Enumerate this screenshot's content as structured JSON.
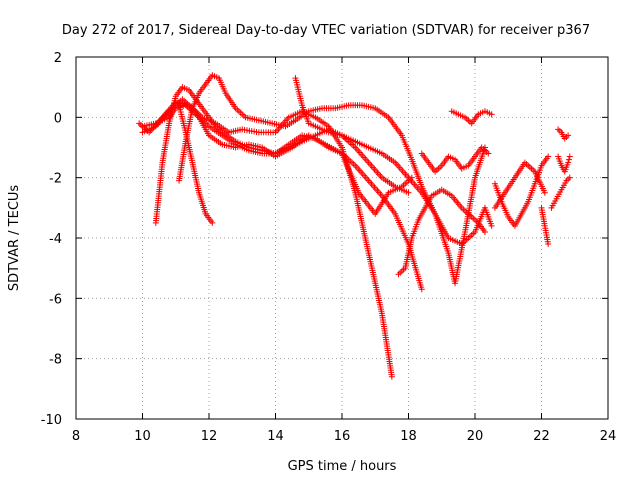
{
  "chart_data": {
    "type": "scatter",
    "title": "Day 272 of 2017, Sidereal Day-to-day VTEC variation (SDTVAR) for receiver p367",
    "xlabel": "GPS time / hours",
    "ylabel": "SDTVAR / TECUs",
    "xlim": [
      8,
      24
    ],
    "ylim": [
      -10,
      2
    ],
    "xticks": [
      "8",
      "10",
      "12",
      "14",
      "16",
      "18",
      "20",
      "22",
      "24"
    ],
    "yticks": [
      "2",
      "0",
      "-2",
      "-4",
      "-6",
      "-8",
      "-10"
    ],
    "grid": true,
    "marker": "+",
    "color": "#ff0000",
    "series": [
      {
        "name": "trace-a",
        "x": [
          9.9,
          10.2,
          10.6,
          11.0,
          11.4,
          11.8,
          12.2,
          12.6,
          13.0,
          13.5,
          14.0,
          14.4,
          14.8,
          15.2,
          15.6,
          16.0,
          16.4,
          16.8,
          17.2,
          17.5
        ],
        "y": [
          -0.2,
          -0.5,
          0.0,
          0.5,
          0.4,
          0.0,
          -0.2,
          -0.5,
          -0.4,
          -0.5,
          -0.5,
          0.0,
          0.2,
          0.0,
          -0.3,
          -1.0,
          -2.5,
          -4.5,
          -6.5,
          -8.6
        ]
      },
      {
        "name": "trace-b",
        "x": [
          10.0,
          10.4,
          10.8,
          11.2,
          11.6,
          12.0,
          12.4,
          12.8,
          13.2,
          13.6,
          14.0,
          14.5,
          15.0,
          15.5,
          16.0,
          16.5,
          17.0,
          17.4,
          17.8,
          18.1
        ],
        "y": [
          -0.5,
          -0.3,
          0.2,
          0.6,
          0.2,
          -0.6,
          -0.9,
          -1.0,
          -0.9,
          -1.0,
          -1.3,
          -1.0,
          -0.6,
          -0.9,
          -1.2,
          -2.5,
          -3.2,
          -2.5,
          -2.3,
          -2.0
        ]
      },
      {
        "name": "trace-c",
        "x": [
          10.0,
          10.4,
          10.8,
          11.0,
          11.3,
          11.6,
          12.0,
          12.4,
          12.8,
          13.2,
          13.6,
          14.0,
          14.4,
          14.8,
          15.2,
          15.6,
          16.0,
          16.4,
          16.8,
          17.2,
          17.6,
          18.0,
          18.4
        ],
        "y": [
          -0.3,
          -0.2,
          0.0,
          0.3,
          0.4,
          0.1,
          -0.3,
          -0.6,
          -0.9,
          -1.1,
          -1.2,
          -1.2,
          -0.9,
          -0.6,
          -0.7,
          -1.0,
          -1.2,
          -1.6,
          -2.1,
          -2.6,
          -3.2,
          -4.2,
          -5.7
        ]
      },
      {
        "name": "trace-d",
        "x": [
          10.4,
          10.6,
          10.8,
          11.0,
          11.2,
          11.4,
          11.6,
          11.8,
          12.0,
          12.2,
          12.4,
          12.8,
          13.2,
          13.6,
          14.0,
          14.4,
          14.8,
          15.2,
          15.6,
          16.0,
          16.4,
          16.8,
          17.2,
          17.6,
          18.0
        ],
        "y": [
          -3.5,
          -1.5,
          -0.2,
          0.7,
          1.0,
          0.9,
          0.6,
          0.3,
          0.0,
          -0.3,
          -0.5,
          -0.8,
          -1.0,
          -1.1,
          -1.2,
          -1.0,
          -0.8,
          -0.6,
          -0.4,
          -0.6,
          -1.0,
          -1.5,
          -2.0,
          -2.3,
          -2.5
        ]
      },
      {
        "name": "trace-e",
        "x": [
          11.1,
          11.3,
          11.5,
          11.7,
          11.9,
          12.1,
          12.3,
          12.5,
          12.8,
          13.1,
          13.5,
          13.9,
          14.3,
          14.6,
          15.0,
          15.4,
          15.8,
          16.2,
          16.6,
          17.0,
          17.4,
          17.8,
          18.1,
          18.4,
          18.8,
          19.2,
          19.6,
          20.0,
          20.3,
          20.5
        ],
        "y": [
          -2.1,
          -0.8,
          0.3,
          0.8,
          1.1,
          1.4,
          1.3,
          0.8,
          0.3,
          0.0,
          -0.1,
          -0.2,
          -0.3,
          -0.1,
          0.2,
          0.3,
          0.3,
          0.4,
          0.4,
          0.3,
          0.0,
          -0.6,
          -1.4,
          -2.3,
          -3.2,
          -4.0,
          -4.2,
          -3.8,
          -3.0,
          -3.6
        ]
      },
      {
        "name": "trace-f",
        "x": [
          11.1,
          11.3,
          11.5,
          11.7,
          11.9,
          12.1
        ],
        "y": [
          0.4,
          -0.5,
          -1.5,
          -2.5,
          -3.2,
          -3.5
        ]
      },
      {
        "name": "trace-g",
        "x": [
          14.6,
          14.8,
          15.0,
          15.2,
          15.6,
          16.0,
          16.4,
          16.8,
          17.2,
          17.6,
          18.0,
          18.4,
          18.8,
          19.2,
          19.4,
          19.7,
          20.0,
          20.3
        ],
        "y": [
          1.3,
          0.4,
          -0.2,
          -0.3,
          -0.5,
          -0.6,
          -0.8,
          -1.0,
          -1.2,
          -1.5,
          -2.0,
          -2.5,
          -3.2,
          -4.5,
          -5.5,
          -3.8,
          -2.0,
          -1.0
        ]
      },
      {
        "name": "trace-h",
        "x": [
          17.7,
          17.9,
          18.1,
          18.3,
          18.5,
          18.7,
          19.0,
          19.3,
          19.6,
          19.9,
          20.1,
          20.3
        ],
        "y": [
          -5.2,
          -5.0,
          -4.0,
          -3.4,
          -3.0,
          -2.6,
          -2.4,
          -2.6,
          -3.0,
          -3.3,
          -3.5,
          -3.8
        ]
      },
      {
        "name": "trace-i",
        "x": [
          18.4,
          18.6,
          18.8,
          19.0,
          19.2,
          19.4,
          19.6,
          19.8,
          20.0,
          20.2,
          20.4
        ],
        "y": [
          -1.2,
          -1.5,
          -1.8,
          -1.6,
          -1.3,
          -1.4,
          -1.7,
          -1.6,
          -1.3,
          -1.0,
          -1.2
        ]
      },
      {
        "name": "trace-j",
        "x": [
          19.3,
          19.5,
          19.7,
          19.9,
          20.1,
          20.3,
          20.5
        ],
        "y": [
          0.2,
          0.1,
          0.0,
          -0.2,
          0.1,
          0.2,
          0.1
        ]
      },
      {
        "name": "trace-k",
        "x": [
          20.6,
          20.8,
          21.0,
          21.2,
          21.4,
          21.6,
          21.8,
          22.0,
          22.2
        ],
        "y": [
          -2.2,
          -2.8,
          -3.3,
          -3.6,
          -3.2,
          -2.8,
          -2.2,
          -1.6,
          -1.3
        ]
      },
      {
        "name": "trace-l",
        "x": [
          20.6,
          20.9,
          21.2,
          21.5,
          21.8,
          22.1
        ],
        "y": [
          -3.0,
          -2.5,
          -2.0,
          -1.5,
          -1.8,
          -2.5
        ]
      },
      {
        "name": "trace-m",
        "x": [
          22.0,
          22.1,
          22.2
        ],
        "y": [
          -3.0,
          -3.6,
          -4.2
        ]
      },
      {
        "name": "trace-n",
        "x": [
          22.3,
          22.45,
          22.6,
          22.75,
          22.85
        ],
        "y": [
          -3.0,
          -2.7,
          -2.4,
          -2.1,
          -2.0
        ]
      },
      {
        "name": "trace-o",
        "x": [
          22.5,
          22.6,
          22.7,
          22.8,
          22.85
        ],
        "y": [
          -1.3,
          -1.6,
          -1.8,
          -1.5,
          -1.3
        ]
      },
      {
        "name": "trace-p",
        "x": [
          22.5,
          22.6,
          22.7,
          22.8
        ],
        "y": [
          -0.4,
          -0.5,
          -0.7,
          -0.6
        ]
      }
    ]
  }
}
